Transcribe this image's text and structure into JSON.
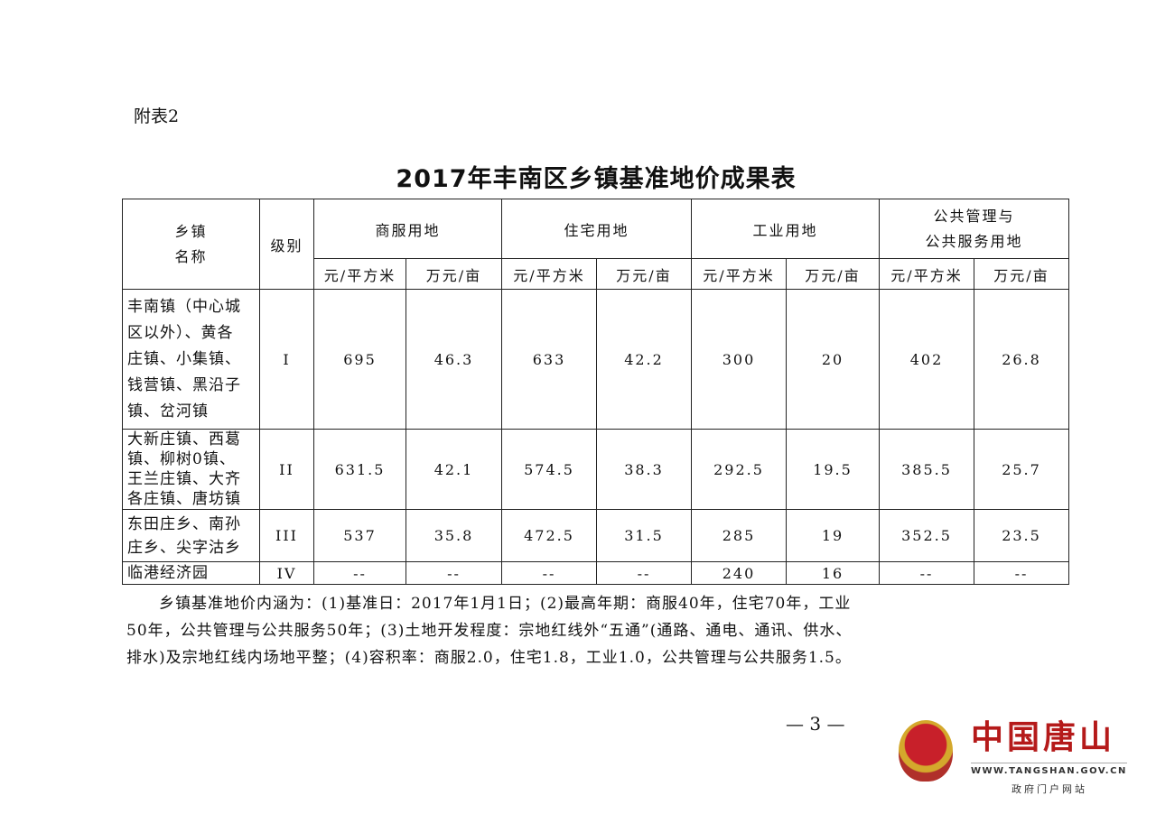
{
  "appendix_label": "附表2",
  "title": "2017年丰南区乡镇基准地价成果表",
  "table": {
    "header": {
      "town_name": [
        "乡镇",
        "名称"
      ],
      "grade": "级别",
      "groups": [
        "商服用地",
        "住宅用地",
        "工业用地",
        [
          "公共管理与",
          "公共服务用地"
        ]
      ],
      "units": [
        "元/平方米",
        "万元/亩",
        "元/平方米",
        "万元/亩",
        "元/平方米",
        "万元/亩",
        "元/平方米",
        "万元/亩"
      ]
    },
    "rows": [
      {
        "name_lines": [
          "丰南镇（中心城",
          "区以外）、黄各",
          "庄镇、小集镇、",
          "钱营镇、黑沿子",
          "镇、岔河镇"
        ],
        "grade": "I",
        "values": [
          "695",
          "46.3",
          "633",
          "42.2",
          "300",
          "20",
          "402",
          "26.8"
        ]
      },
      {
        "name_lines": [
          "大新庄镇、西葛",
          "镇、柳树0镇、",
          "王兰庄镇、大齐",
          "各庄镇、唐坊镇"
        ],
        "grade": "II",
        "values": [
          "631.5",
          "42.1",
          "574.5",
          "38.3",
          "292.5",
          "19.5",
          "385.5",
          "25.7"
        ]
      },
      {
        "name_lines": [
          "东田庄乡、南孙",
          "庄乡、尖字沽乡"
        ],
        "grade": "III",
        "values": [
          "537",
          "35.8",
          "472.5",
          "31.5",
          "285",
          "19",
          "352.5",
          "23.5"
        ]
      },
      {
        "name_lines": [
          "临港经济园"
        ],
        "grade": "IV",
        "values": [
          "--",
          "--",
          "--",
          "--",
          "240",
          "16",
          "--",
          "--"
        ]
      }
    ]
  },
  "notes": [
    "　　乡镇基准地价内涵为：(1)基准日：2017年1月1日；(2)最高年期：商服40年，住宅70年，工业",
    "50年，公共管理与公共服务50年；(3)土地开发程度：宗地红线外“五通”(通路、通电、通讯、供水、",
    "排水)及宗地红线内场地平整；(4)容积率：商服2.0，住宅1.8，工业1.0，公共管理与公共服务1.5。"
  ],
  "page_number": "— 3 —",
  "watermark": {
    "name": "中国唐山",
    "url": "WWW.TANGSHAN.GOV.CN",
    "subtitle": "政府门户网站",
    "color": "#b51a1a",
    "icon": "national-emblem-icon"
  }
}
